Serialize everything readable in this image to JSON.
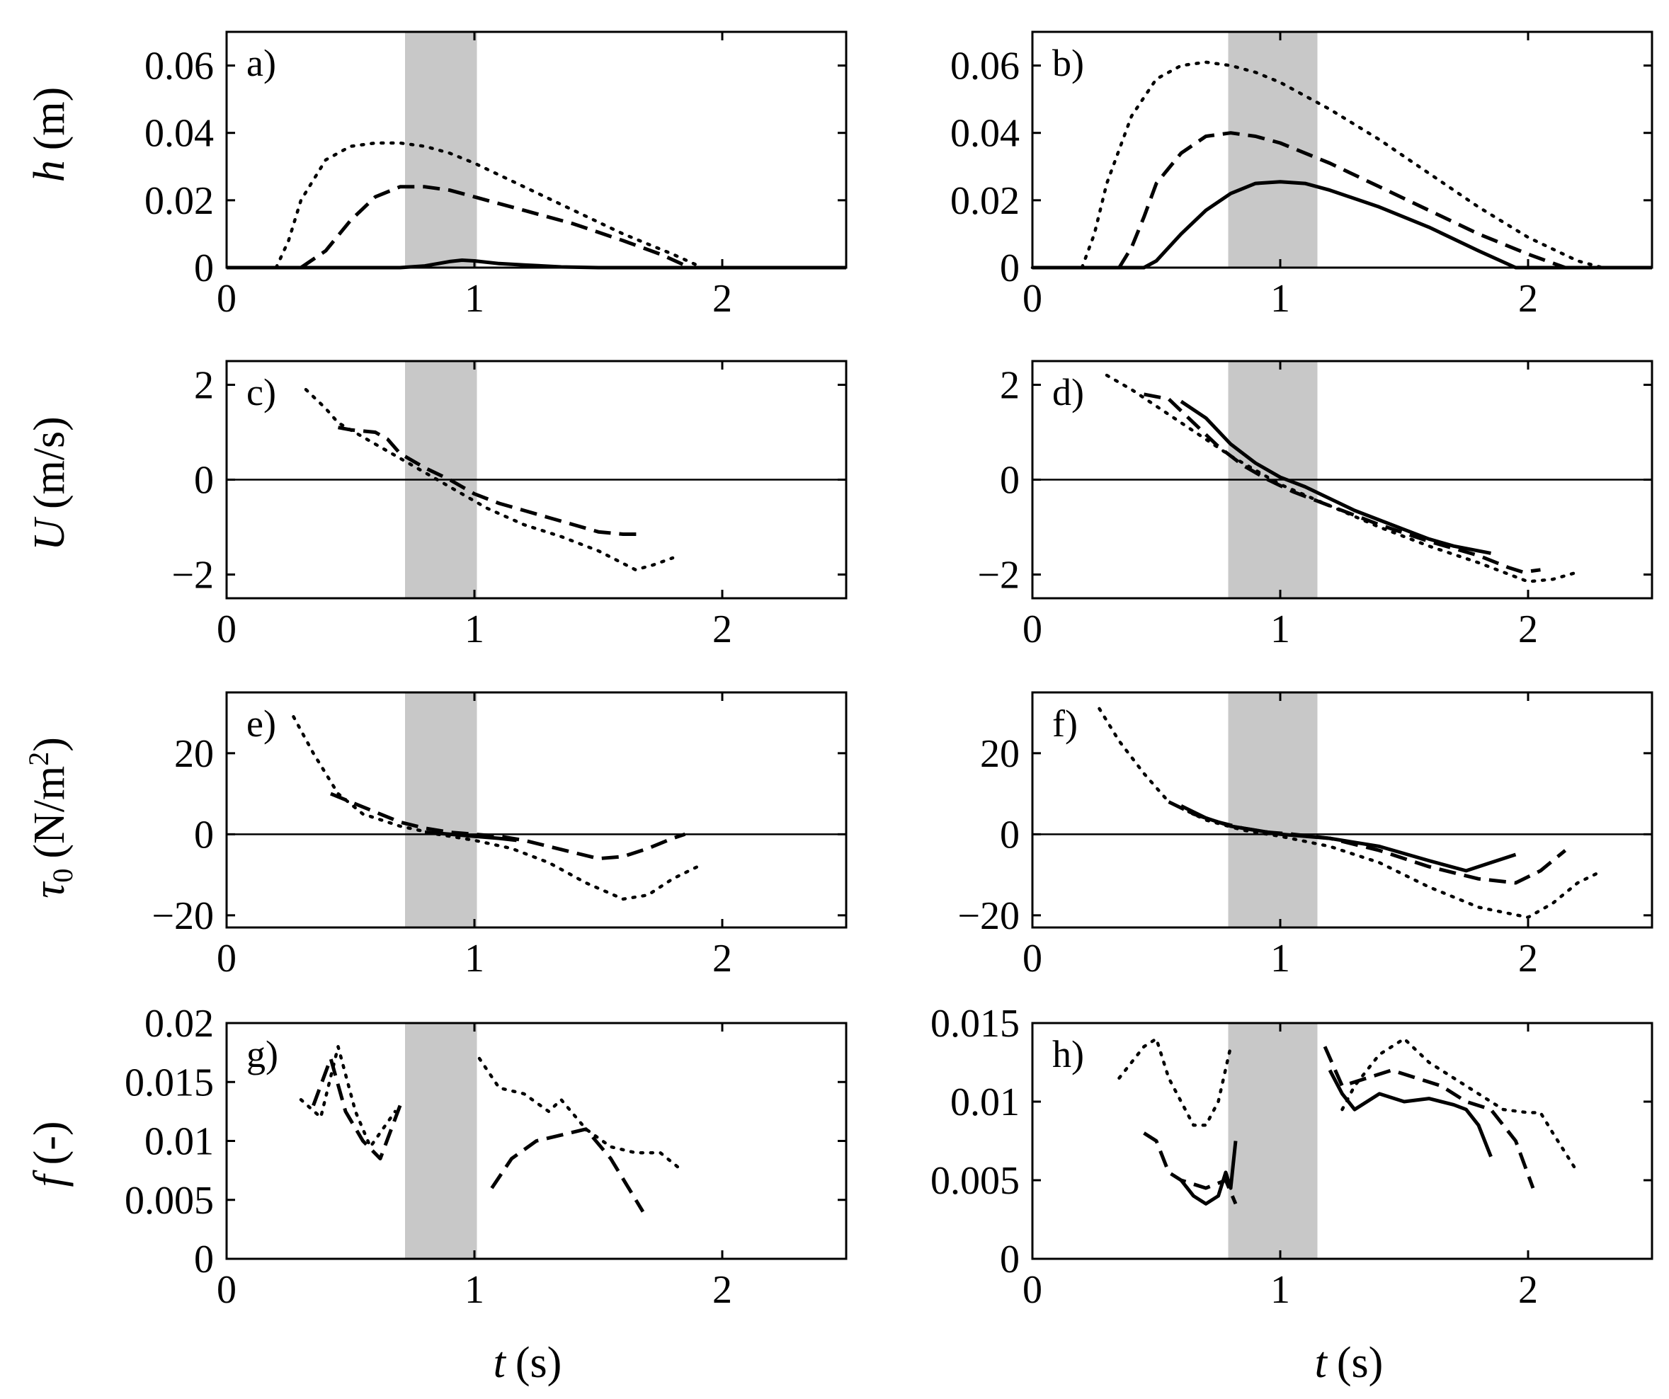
{
  "colors": {
    "shade": "#c8c8c8",
    "line": "#000000",
    "background": "#ffffff"
  },
  "line_styles": [
    "solid",
    "dashed",
    "dotted"
  ],
  "ylabels": {
    "h": {
      "sym": "h",
      "unit": "(m)"
    },
    "U": {
      "sym": "U",
      "unit": "(m/s)"
    },
    "tau": {
      "sym": "τ",
      "sub": "0",
      "unit": "(N/m",
      "sup": "2",
      "close": ")"
    },
    "f": {
      "sym": "f",
      "unit": "(-)"
    }
  },
  "xlabel": {
    "sym": "t",
    "unit": "(s)"
  },
  "chart_data": [
    {
      "type": "line",
      "panel": "a)",
      "row": "h",
      "xlim": [
        0,
        2.5
      ],
      "ylim": [
        0,
        0.07
      ],
      "xticks": [
        0,
        1,
        2
      ],
      "xtick_labels": [
        "0",
        "1",
        "2"
      ],
      "yticks": [
        0,
        0.02,
        0.04,
        0.06
      ],
      "ytick_labels": [
        "0",
        "0.02",
        "0.04",
        "0.06"
      ],
      "shade": [
        0.72,
        1.01
      ],
      "zero_line": false,
      "series": [
        {
          "style": "solid",
          "x": [
            0,
            0.2,
            0.7,
            0.8,
            0.9,
            0.95,
            1.0,
            1.1,
            1.2,
            1.35,
            1.5,
            2.5
          ],
          "y": [
            0,
            0,
            0,
            0.0005,
            0.0018,
            0.0022,
            0.002,
            0.0012,
            0.0008,
            0.0002,
            0,
            0
          ]
        },
        {
          "style": "dashed",
          "x": [
            0.3,
            0.4,
            0.5,
            0.6,
            0.7,
            0.8,
            0.9,
            1.0,
            1.2,
            1.4,
            1.6,
            1.75,
            1.87
          ],
          "y": [
            0,
            0.005,
            0.014,
            0.021,
            0.024,
            0.024,
            0.023,
            0.021,
            0.017,
            0.013,
            0.008,
            0.004,
            0
          ]
        },
        {
          "style": "dotted",
          "x": [
            0.2,
            0.25,
            0.3,
            0.4,
            0.5,
            0.6,
            0.7,
            0.8,
            0.9,
            1.0,
            1.2,
            1.4,
            1.6,
            1.8,
            1.92
          ],
          "y": [
            0,
            0.008,
            0.02,
            0.032,
            0.036,
            0.037,
            0.037,
            0.036,
            0.034,
            0.031,
            0.024,
            0.017,
            0.01,
            0.004,
            0
          ]
        }
      ]
    },
    {
      "type": "line",
      "panel": "b)",
      "row": "h",
      "xlim": [
        0,
        2.5
      ],
      "ylim": [
        0,
        0.07
      ],
      "xticks": [
        0,
        1,
        2
      ],
      "xtick_labels": [
        "0",
        "1",
        "2"
      ],
      "yticks": [
        0,
        0.02,
        0.04,
        0.06
      ],
      "ytick_labels": [
        "0",
        "0.02",
        "0.04",
        "0.06"
      ],
      "shade": [
        0.79,
        1.15
      ],
      "zero_line": false,
      "series": [
        {
          "style": "solid",
          "x": [
            0,
            0.45,
            0.5,
            0.6,
            0.7,
            0.8,
            0.9,
            1.0,
            1.1,
            1.2,
            1.4,
            1.6,
            1.8,
            1.95,
            2.5
          ],
          "y": [
            0,
            0,
            0.002,
            0.01,
            0.017,
            0.022,
            0.025,
            0.0255,
            0.025,
            0.023,
            0.018,
            0.012,
            0.005,
            0,
            0
          ]
        },
        {
          "style": "dashed",
          "x": [
            0.35,
            0.4,
            0.45,
            0.5,
            0.6,
            0.7,
            0.8,
            0.9,
            1.0,
            1.2,
            1.4,
            1.6,
            1.8,
            2.0,
            2.15
          ],
          "y": [
            0,
            0.006,
            0.015,
            0.025,
            0.034,
            0.039,
            0.04,
            0.039,
            0.037,
            0.031,
            0.024,
            0.017,
            0.01,
            0.004,
            0
          ]
        },
        {
          "style": "dotted",
          "x": [
            0,
            0.2,
            0.25,
            0.3,
            0.4,
            0.5,
            0.6,
            0.7,
            0.8,
            0.9,
            1.0,
            1.2,
            1.4,
            1.6,
            1.8,
            2.0,
            2.2,
            2.3,
            2.5
          ],
          "y": [
            0,
            0,
            0.01,
            0.025,
            0.045,
            0.056,
            0.06,
            0.061,
            0.06,
            0.058,
            0.055,
            0.047,
            0.038,
            0.028,
            0.018,
            0.009,
            0.002,
            0,
            0
          ]
        }
      ]
    },
    {
      "type": "line",
      "panel": "c)",
      "row": "U",
      "xlim": [
        0,
        2.5
      ],
      "ylim": [
        -2.5,
        2.5
      ],
      "xticks": [
        0,
        1,
        2
      ],
      "xtick_labels": [
        "0",
        "1",
        "2"
      ],
      "yticks": [
        -2,
        0,
        2
      ],
      "ytick_labels": [
        "−2",
        "0",
        "2"
      ],
      "shade": [
        0.72,
        1.01
      ],
      "zero_line": true,
      "series": [
        {
          "style": "dashed",
          "x": [
            0.45,
            0.5,
            0.6,
            0.65,
            0.7,
            0.8,
            0.9,
            1.0,
            1.1,
            1.2,
            1.3,
            1.4,
            1.5,
            1.6,
            1.67
          ],
          "y": [
            1.1,
            1.05,
            1.0,
            0.85,
            0.55,
            0.25,
            0.0,
            -0.3,
            -0.5,
            -0.65,
            -0.8,
            -0.95,
            -1.1,
            -1.15,
            -1.15
          ]
        },
        {
          "style": "dotted",
          "x": [
            0.32,
            0.4,
            0.45,
            0.55,
            0.65,
            0.75,
            0.85,
            0.95,
            1.05,
            1.2,
            1.35,
            1.5,
            1.65,
            1.72,
            1.8
          ],
          "y": [
            1.9,
            1.5,
            1.2,
            0.9,
            0.6,
            0.3,
            0.0,
            -0.3,
            -0.6,
            -0.95,
            -1.2,
            -1.5,
            -1.9,
            -1.8,
            -1.65
          ]
        }
      ]
    },
    {
      "type": "line",
      "panel": "d)",
      "row": "U",
      "xlim": [
        0,
        2.5
      ],
      "ylim": [
        -2.5,
        2.5
      ],
      "xticks": [
        0,
        1,
        2
      ],
      "xtick_labels": [
        "0",
        "1",
        "2"
      ],
      "yticks": [
        -2,
        0,
        2
      ],
      "ytick_labels": [
        "−2",
        "0",
        "2"
      ],
      "shade": [
        0.79,
        1.15
      ],
      "zero_line": true,
      "series": [
        {
          "style": "solid",
          "x": [
            0.6,
            0.7,
            0.8,
            0.9,
            1.0,
            1.1,
            1.2,
            1.3,
            1.4,
            1.5,
            1.6,
            1.7,
            1.85
          ],
          "y": [
            1.65,
            1.3,
            0.75,
            0.35,
            0.05,
            -0.15,
            -0.4,
            -0.65,
            -0.85,
            -1.05,
            -1.25,
            -1.4,
            -1.55
          ]
        },
        {
          "style": "dashed",
          "x": [
            0.45,
            0.55,
            0.65,
            0.75,
            0.85,
            0.95,
            1.05,
            1.2,
            1.4,
            1.6,
            1.8,
            1.92,
            1.98,
            2.05
          ],
          "y": [
            1.8,
            1.7,
            1.2,
            0.7,
            0.3,
            0.0,
            -0.25,
            -0.55,
            -0.95,
            -1.3,
            -1.6,
            -1.85,
            -1.95,
            -1.9
          ]
        },
        {
          "style": "dotted",
          "x": [
            0.3,
            0.4,
            0.5,
            0.6,
            0.7,
            0.8,
            0.9,
            1.0,
            1.2,
            1.4,
            1.6,
            1.8,
            1.9,
            2.0,
            2.1,
            2.2
          ],
          "y": [
            2.2,
            1.9,
            1.55,
            1.2,
            0.85,
            0.5,
            0.2,
            -0.1,
            -0.55,
            -1.0,
            -1.4,
            -1.75,
            -1.95,
            -2.15,
            -2.1,
            -1.95
          ]
        }
      ]
    },
    {
      "type": "line",
      "panel": "e)",
      "row": "tau",
      "xlim": [
        0,
        2.5
      ],
      "ylim": [
        -23,
        35
      ],
      "xticks": [
        0,
        1,
        2
      ],
      "xtick_labels": [
        "0",
        "1",
        "2"
      ],
      "yticks": [
        -20,
        0,
        20
      ],
      "ytick_labels": [
        "−20",
        "0",
        "20"
      ],
      "shade": [
        0.72,
        1.01
      ],
      "zero_line": true,
      "series": [
        {
          "style": "solid",
          "x": [
            0.8,
            0.9,
            1.0,
            1.1,
            1.17
          ],
          "y": [
            0.5,
            0,
            -0.5,
            -1,
            -1.5
          ]
        },
        {
          "style": "dashed",
          "x": [
            0.42,
            0.5,
            0.6,
            0.7,
            0.8,
            0.9,
            1.0,
            1.1,
            1.2,
            1.3,
            1.4,
            1.5,
            1.6,
            1.7,
            1.8,
            1.85
          ],
          "y": [
            10,
            8,
            5.5,
            3,
            1.5,
            0.5,
            0,
            -0.5,
            -1.5,
            -3,
            -4.5,
            -6,
            -5.5,
            -3.5,
            -1,
            0
          ]
        },
        {
          "style": "dotted",
          "x": [
            0.27,
            0.35,
            0.45,
            0.55,
            0.7,
            0.85,
            1.0,
            1.15,
            1.3,
            1.45,
            1.6,
            1.7,
            1.8,
            1.9
          ],
          "y": [
            29,
            20,
            10,
            5,
            2,
            0,
            -1.5,
            -3.5,
            -7,
            -12,
            -16,
            -15,
            -11,
            -8
          ]
        }
      ]
    },
    {
      "type": "line",
      "panel": "f)",
      "row": "tau",
      "xlim": [
        0,
        2.5
      ],
      "ylim": [
        -23,
        35
      ],
      "xticks": [
        0,
        1,
        2
      ],
      "xtick_labels": [
        "0",
        "1",
        "2"
      ],
      "yticks": [
        -20,
        0,
        20
      ],
      "ytick_labels": [
        "−20",
        "0",
        "20"
      ],
      "shade": [
        0.79,
        1.15
      ],
      "zero_line": true,
      "series": [
        {
          "style": "solid",
          "x": [
            0.6,
            0.7,
            0.8,
            0.9,
            1.0,
            1.2,
            1.4,
            1.6,
            1.75,
            1.85,
            1.95
          ],
          "y": [
            7,
            4,
            2,
            1,
            0,
            -1,
            -3,
            -6.5,
            -9,
            -7,
            -5
          ]
        },
        {
          "style": "dashed",
          "x": [
            0.55,
            0.65,
            0.75,
            0.85,
            0.95,
            1.05,
            1.2,
            1.4,
            1.6,
            1.8,
            1.95,
            2.05,
            2.15
          ],
          "y": [
            8,
            5,
            3,
            1.5,
            0.5,
            0,
            -1,
            -4,
            -8,
            -11,
            -12,
            -9,
            -4
          ]
        },
        {
          "style": "dotted",
          "x": [
            0.27,
            0.35,
            0.45,
            0.55,
            0.7,
            0.85,
            1.0,
            1.2,
            1.4,
            1.6,
            1.8,
            2.0,
            2.1,
            2.2,
            2.3
          ],
          "y": [
            31,
            23,
            15,
            8,
            3.5,
            1,
            -0.5,
            -3,
            -7,
            -13,
            -18,
            -20.5,
            -17,
            -12,
            -9
          ]
        }
      ]
    },
    {
      "type": "line",
      "panel": "g)",
      "row": "f",
      "xlim": [
        0,
        2.5
      ],
      "ylim": [
        0,
        0.02
      ],
      "xticks": [
        0,
        1,
        2
      ],
      "xtick_labels": [
        "0",
        "1",
        "2"
      ],
      "yticks": [
        0,
        0.005,
        0.01,
        0.015,
        0.02
      ],
      "ytick_labels": [
        "0",
        "0.005",
        "0.01",
        "0.015",
        "0.02"
      ],
      "shade": [
        0.72,
        1.01
      ],
      "zero_line": false,
      "series": [
        {
          "style": "dashed",
          "x": [
            0.35,
            0.42,
            0.48,
            0.55,
            0.62,
            0.7
          ],
          "y": [
            0.013,
            0.017,
            0.0125,
            0.01,
            0.0085,
            0.013
          ]
        },
        {
          "style": "dashed",
          "x": [
            1.07,
            1.15,
            1.25,
            1.35,
            1.45,
            1.55,
            1.68
          ],
          "y": [
            0.006,
            0.0085,
            0.01,
            0.0105,
            0.011,
            0.0085,
            0.004
          ]
        },
        {
          "style": "dotted",
          "x": [
            0.3,
            0.38,
            0.45,
            0.52,
            0.58,
            0.68
          ],
          "y": [
            0.0135,
            0.012,
            0.018,
            0.0125,
            0.0095,
            0.0125
          ]
        },
        {
          "style": "dotted",
          "x": [
            1.02,
            1.1,
            1.2,
            1.3,
            1.35,
            1.45,
            1.55,
            1.65,
            1.75,
            1.82
          ],
          "y": [
            0.017,
            0.0145,
            0.014,
            0.0125,
            0.0135,
            0.011,
            0.0095,
            0.009,
            0.009,
            0.0078
          ]
        }
      ]
    },
    {
      "type": "line",
      "panel": "h)",
      "row": "f",
      "xlim": [
        0,
        2.5
      ],
      "ylim": [
        0,
        0.015
      ],
      "xticks": [
        0,
        1,
        2
      ],
      "xtick_labels": [
        "0",
        "1",
        "2"
      ],
      "yticks": [
        0,
        0.005,
        0.01,
        0.015
      ],
      "ytick_labels": [
        "0",
        "0.005",
        "0.01",
        "0.015"
      ],
      "shade": [
        0.79,
        1.15
      ],
      "zero_line": false,
      "series": [
        {
          "style": "solid",
          "x": [
            0.6,
            0.65,
            0.7,
            0.75,
            0.78,
            0.8,
            0.82
          ],
          "y": [
            0.005,
            0.004,
            0.0035,
            0.004,
            0.0055,
            0.0045,
            0.0075
          ]
        },
        {
          "style": "solid",
          "x": [
            1.2,
            1.25,
            1.3,
            1.4,
            1.5,
            1.6,
            1.7,
            1.75,
            1.8,
            1.85
          ],
          "y": [
            0.012,
            0.0105,
            0.0095,
            0.0105,
            0.01,
            0.0102,
            0.0098,
            0.0095,
            0.0085,
            0.0065
          ]
        },
        {
          "style": "dashed",
          "x": [
            0.45,
            0.5,
            0.55,
            0.6,
            0.7,
            0.78,
            0.82
          ],
          "y": [
            0.008,
            0.0075,
            0.0055,
            0.005,
            0.0045,
            0.005,
            0.0035
          ]
        },
        {
          "style": "dashed",
          "x": [
            1.18,
            1.25,
            1.35,
            1.45,
            1.55,
            1.65,
            1.75,
            1.85,
            1.95,
            2.02
          ],
          "y": [
            0.0135,
            0.011,
            0.0115,
            0.012,
            0.0115,
            0.011,
            0.01,
            0.0095,
            0.0075,
            0.0045
          ]
        },
        {
          "style": "dotted",
          "x": [
            0.35,
            0.45,
            0.5,
            0.55,
            0.6,
            0.65,
            0.7,
            0.75,
            0.8
          ],
          "y": [
            0.0115,
            0.0135,
            0.014,
            0.0115,
            0.01,
            0.0085,
            0.0085,
            0.01,
            0.0135
          ]
        },
        {
          "style": "dotted",
          "x": [
            1.25,
            1.3,
            1.4,
            1.5,
            1.6,
            1.7,
            1.8,
            1.9,
            2.0,
            2.05,
            2.1,
            2.2
          ],
          "y": [
            0.0095,
            0.011,
            0.013,
            0.014,
            0.0125,
            0.0115,
            0.0105,
            0.0095,
            0.0093,
            0.0093,
            0.008,
            0.0055
          ]
        }
      ]
    }
  ]
}
